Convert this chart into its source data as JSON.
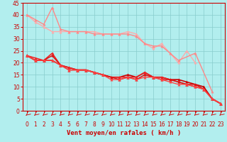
{
  "xlabel": "Vent moyen/en rafales ( km/h )",
  "xlim": [
    -0.5,
    23.5
  ],
  "ylim": [
    0,
    45
  ],
  "xticks": [
    0,
    1,
    2,
    3,
    4,
    5,
    6,
    7,
    8,
    9,
    10,
    11,
    12,
    13,
    14,
    15,
    16,
    17,
    18,
    19,
    20,
    21,
    22,
    23
  ],
  "yticks": [
    0,
    5,
    10,
    15,
    20,
    25,
    30,
    35,
    40,
    45
  ],
  "background_color": "#b2eeee",
  "grid_color": "#88cccc",
  "lines": [
    {
      "x": [
        0,
        1,
        2,
        3,
        4,
        5,
        6,
        7,
        8,
        9,
        10,
        11,
        12,
        13,
        14,
        15,
        16,
        17,
        18,
        19,
        20
      ],
      "y": [
        40,
        37,
        35,
        33,
        33,
        33,
        33,
        33,
        33,
        32,
        32,
        32,
        33,
        32,
        28,
        26,
        28,
        24,
        20,
        25,
        20
      ],
      "color": "#ffaaaa",
      "lw": 1.0,
      "marker": "^",
      "ms": 2.5
    },
    {
      "x": [
        0,
        1,
        2,
        3,
        4,
        5,
        6,
        7,
        8,
        9,
        10,
        11,
        12,
        13,
        14,
        15,
        16,
        17,
        18,
        20,
        22
      ],
      "y": [
        40,
        38,
        36,
        43,
        34,
        33,
        33,
        33,
        32,
        32,
        32,
        32,
        32,
        31,
        28,
        27,
        27,
        24,
        21,
        24,
        8
      ],
      "color": "#ff8888",
      "lw": 1.0,
      "marker": "^",
      "ms": 2.5
    },
    {
      "x": [
        0,
        1,
        2,
        3,
        4,
        5,
        6,
        7,
        8,
        9,
        10,
        11,
        12,
        13,
        14,
        15,
        16,
        17,
        18,
        19,
        20,
        21,
        22,
        23
      ],
      "y": [
        23,
        21,
        21,
        21,
        19,
        18,
        17,
        17,
        16,
        15,
        14,
        14,
        15,
        14,
        16,
        14,
        14,
        13,
        13,
        12,
        11,
        10,
        5,
        3
      ],
      "color": "#cc0000",
      "lw": 1.2,
      "marker": "^",
      "ms": 2.5
    },
    {
      "x": [
        0,
        1,
        2,
        3,
        4,
        5,
        6,
        7,
        8,
        9,
        10,
        11,
        12,
        13,
        14,
        15,
        16,
        17,
        18,
        19,
        20,
        21,
        22,
        23
      ],
      "y": [
        23,
        22,
        21,
        24,
        19,
        18,
        17,
        17,
        16,
        15,
        14,
        14,
        14,
        14,
        16,
        14,
        14,
        13,
        12,
        11,
        10,
        9,
        5,
        3
      ],
      "color": "#ee2222",
      "lw": 1.1,
      "marker": "^",
      "ms": 2.5
    },
    {
      "x": [
        0,
        1,
        2,
        3,
        4,
        5,
        6,
        7,
        8,
        9,
        10,
        11,
        12,
        13,
        14,
        15,
        16,
        17,
        18,
        19,
        20,
        21,
        22,
        23
      ],
      "y": [
        23,
        21,
        21,
        23,
        19,
        17,
        17,
        17,
        16,
        15,
        14,
        13,
        14,
        13,
        15,
        14,
        13,
        13,
        12,
        11,
        11,
        9,
        5,
        3
      ],
      "color": "#dd1111",
      "lw": 1.1,
      "marker": "^",
      "ms": 2.5
    },
    {
      "x": [
        0,
        1,
        2,
        3,
        4,
        5,
        6,
        7,
        8,
        9,
        10,
        11,
        12,
        13,
        14,
        15,
        16,
        17,
        18,
        19,
        20,
        21,
        22,
        23
      ],
      "y": [
        23,
        21,
        21,
        21,
        19,
        17,
        17,
        17,
        16,
        15,
        13,
        13,
        14,
        13,
        14,
        14,
        13,
        12,
        11,
        11,
        10,
        9,
        5,
        3
      ],
      "color": "#ff4444",
      "lw": 1.0,
      "marker": "^",
      "ms": 2.5
    }
  ],
  "arrow_color": "#cc0000",
  "tick_color": "#cc0000",
  "label_color": "#cc0000",
  "axis_color": "#cc0000",
  "font_size_ticks": 5.5,
  "font_size_label": 6.5
}
